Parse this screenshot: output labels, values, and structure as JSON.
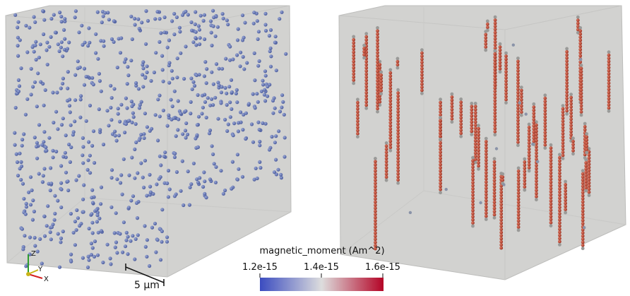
{
  "scale_bar": {
    "label": "5 µm"
  },
  "axes": {
    "z": "Z",
    "y": "Y",
    "x": "X"
  },
  "colorbar": {
    "title": "magnetic_moment (Am^2)",
    "ticks": [
      "1.2e-15",
      "1.4e-15",
      "1.6e-15"
    ]
  }
}
